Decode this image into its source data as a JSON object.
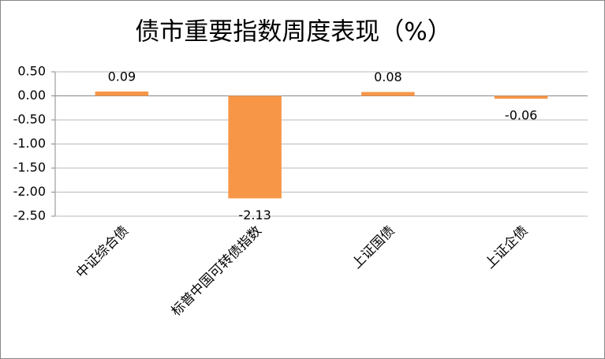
{
  "chart_data": {
    "type": "bar",
    "title": "债市重要指数周度表现（%）",
    "categories": [
      "中证综合债",
      "标普中国可转债指数",
      "上证国债",
      "上证企债"
    ],
    "values": [
      0.09,
      -2.13,
      0.08,
      -0.06
    ],
    "color": "#f79646",
    "ylim": [
      -2.5,
      0.5
    ],
    "yticks": [
      {
        "value": -2.5,
        "label": "-2.50"
      },
      {
        "value": -2,
        "label": "-2.00"
      },
      {
        "value": -1.5,
        "label": "-1.50"
      },
      {
        "value": -1,
        "label": "-1.00"
      },
      {
        "value": -0.5,
        "label": "-0.50"
      },
      {
        "value": 0,
        "label": "0.00"
      },
      {
        "value": 0.5,
        "label": "0.50"
      }
    ],
    "grid": true
  }
}
